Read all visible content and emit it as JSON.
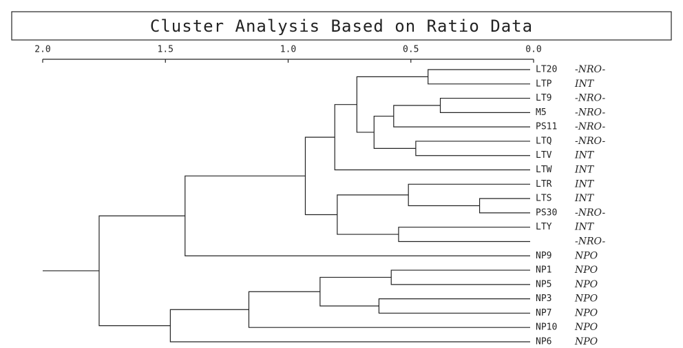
{
  "chart_data": {
    "type": "dendrogram",
    "title": "Cluster Analysis Based on Ratio Data",
    "xlim": [
      2,
      0
    ],
    "xticks": [
      {
        "value": 2,
        "label": "2.0"
      },
      {
        "value": 1.5,
        "label": "1.5"
      },
      {
        "value": 1,
        "label": "1.0"
      },
      {
        "value": 0.5,
        "label": "0.5"
      },
      {
        "value": 0,
        "label": "0.0"
      }
    ],
    "leaves": [
      "LT20",
      "LTP",
      "LT9",
      "M5",
      "PS11",
      "LTQ",
      "LTV",
      "LTW",
      "LTR",
      "LTS",
      "PS30",
      "LTY",
      null,
      "NP9",
      "NP1",
      "NP5",
      "NP3",
      "NP7",
      "NP10",
      "NP6"
    ],
    "annotations": [
      "-NRO-",
      "INT",
      "-NRO-",
      "-NRO-",
      "-NRO-",
      "-NRO-",
      "INT",
      "INT",
      "INT",
      "INT",
      "-NRO-",
      "INT",
      "-NRO-",
      "NPO",
      "NPO",
      "NPO",
      "NPO",
      "NPO",
      "NPO",
      "NPO"
    ],
    "merges": [
      {
        "children": [
          0,
          1
        ],
        "height": 0.43
      },
      {
        "children": [
          2,
          3
        ],
        "height": 0.38
      },
      {
        "children": [
          21,
          4
        ],
        "height": 0.57
      },
      {
        "children": [
          5,
          6
        ],
        "height": 0.48
      },
      {
        "children": [
          22,
          23
        ],
        "height": 0.65
      },
      {
        "children": [
          20,
          24
        ],
        "height": 0.72
      },
      {
        "children": [
          25,
          7
        ],
        "height": 0.81
      },
      {
        "children": [
          9,
          10
        ],
        "height": 0.22
      },
      {
        "children": [
          8,
          27
        ],
        "height": 0.51
      },
      {
        "children": [
          11,
          12
        ],
        "height": 0.55
      },
      {
        "children": [
          28,
          29
        ],
        "height": 0.8
      },
      {
        "children": [
          26,
          30
        ],
        "height": 0.93
      },
      {
        "children": [
          31,
          13
        ],
        "height": 1.42
      },
      {
        "children": [
          14,
          15
        ],
        "height": 0.58
      },
      {
        "children": [
          16,
          17
        ],
        "height": 0.63
      },
      {
        "children": [
          33,
          34
        ],
        "height": 0.87
      },
      {
        "children": [
          35,
          18
        ],
        "height": 1.16
      },
      {
        "children": [
          36,
          19
        ],
        "height": 1.48
      },
      {
        "children": [
          32,
          37
        ],
        "height": 1.77
      }
    ]
  }
}
